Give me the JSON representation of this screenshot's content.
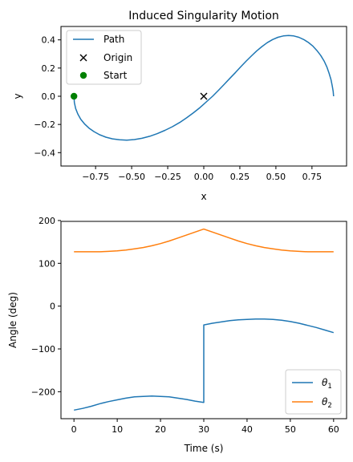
{
  "chart_data": [
    {
      "type": "line",
      "title": "Induced Singularity Motion",
      "xlabel": "x",
      "ylabel": "y",
      "xlim": [
        -0.99,
        0.99
      ],
      "ylim": [
        -0.495,
        0.495
      ],
      "xticks": [
        -0.75,
        -0.5,
        -0.25,
        0.0,
        0.25,
        0.5,
        0.75
      ],
      "xtick_labels": [
        "−0.75",
        "−0.50",
        "−0.25",
        "0.00",
        "0.25",
        "0.50",
        "0.75"
      ],
      "yticks": [
        -0.4,
        -0.2,
        0.0,
        0.2,
        0.4
      ],
      "ytick_labels": [
        "−0.4",
        "−0.2",
        "0.0",
        "0.2",
        "0.4"
      ],
      "grid": false,
      "legend_position": "top-left",
      "series": [
        {
          "name": "Path",
          "color": "#1f77b4",
          "marker": "line",
          "x": [
            -0.9,
            -0.897,
            -0.888,
            -0.873,
            -0.853,
            -0.827,
            -0.796,
            -0.761,
            -0.722,
            -0.679,
            -0.633,
            -0.584,
            -0.534,
            -0.481,
            -0.428,
            -0.375,
            -0.322,
            -0.269,
            -0.218,
            -0.167,
            -0.119,
            -0.072,
            -0.026,
            0.018,
            0.061,
            0.102,
            0.142,
            0.181,
            0.22,
            0.257,
            0.294,
            0.331,
            0.367,
            0.404,
            0.44,
            0.477,
            0.514,
            0.551,
            0.588,
            0.624,
            0.659,
            0.693,
            0.726,
            0.757,
            0.785,
            0.811,
            0.834,
            0.853,
            0.869,
            0.882,
            0.891,
            0.897,
            0.9
          ],
          "y": [
            0.0,
            -0.045,
            -0.087,
            -0.126,
            -0.163,
            -0.196,
            -0.226,
            -0.251,
            -0.273,
            -0.29,
            -0.302,
            -0.309,
            -0.311,
            -0.307,
            -0.298,
            -0.284,
            -0.265,
            -0.242,
            -0.216,
            -0.186,
            -0.153,
            -0.117,
            -0.08,
            -0.04,
            0.0,
            0.042,
            0.085,
            0.127,
            0.169,
            0.21,
            0.25,
            0.287,
            0.322,
            0.353,
            0.38,
            0.402,
            0.418,
            0.428,
            0.431,
            0.428,
            0.418,
            0.402,
            0.381,
            0.355,
            0.324,
            0.289,
            0.25,
            0.208,
            0.163,
            0.117,
            0.071,
            0.034,
            0.0
          ]
        },
        {
          "name": "Origin",
          "color": "#000000",
          "marker": "x",
          "x": [
            0.0
          ],
          "y": [
            0.0
          ]
        },
        {
          "name": "Start",
          "color": "#008000",
          "marker": "o",
          "x": [
            -0.9
          ],
          "y": [
            0.0
          ]
        }
      ]
    },
    {
      "type": "line",
      "title": "",
      "xlabel": "Time (s)",
      "ylabel": "Angle (deg)",
      "xlim": [
        -3,
        63
      ],
      "ylim": [
        -263,
        198
      ],
      "xticks": [
        0,
        10,
        20,
        30,
        40,
        50,
        60
      ],
      "xtick_labels": [
        "0",
        "10",
        "20",
        "30",
        "40",
        "50",
        "60"
      ],
      "yticks": [
        -200,
        -100,
        0,
        100,
        200
      ],
      "ytick_labels": [
        "−200",
        "−100",
        "0",
        "100",
        "200"
      ],
      "grid": false,
      "legend_position": "bottom-right",
      "series": [
        {
          "name": "θ1",
          "label_base": "θ",
          "label_sub": "1",
          "color": "#1f77b4",
          "x": [
            0,
            2,
            4,
            6,
            8,
            10,
            12,
            14,
            16,
            18,
            20,
            22,
            24,
            26,
            28,
            30,
            30,
            32,
            34,
            36,
            38,
            40,
            42,
            44,
            46,
            48,
            50,
            52,
            54,
            56,
            58,
            60
          ],
          "y": [
            -243,
            -239,
            -234,
            -228,
            -223,
            -219,
            -215,
            -212,
            -211,
            -210,
            -211,
            -212,
            -215,
            -218,
            -222,
            -225,
            -44,
            -40,
            -37,
            -34,
            -32,
            -31,
            -30,
            -30,
            -31,
            -33,
            -36,
            -40,
            -45,
            -50,
            -56,
            -62
          ]
        },
        {
          "name": "θ2",
          "label_base": "θ",
          "label_sub": "2",
          "color": "#ff7f0e",
          "x": [
            0,
            2,
            4,
            6,
            8,
            10,
            12,
            14,
            16,
            18,
            20,
            22,
            24,
            26,
            28,
            30,
            32,
            34,
            36,
            38,
            40,
            42,
            44,
            46,
            48,
            50,
            52,
            54,
            56,
            58,
            60
          ],
          "y": [
            127,
            127,
            127,
            127,
            128,
            129,
            131,
            134,
            137,
            141,
            146,
            152,
            159,
            166,
            173,
            180,
            173,
            166,
            159,
            152,
            146,
            141,
            137,
            134,
            131,
            129,
            128,
            127,
            127,
            127,
            127
          ]
        }
      ]
    }
  ]
}
